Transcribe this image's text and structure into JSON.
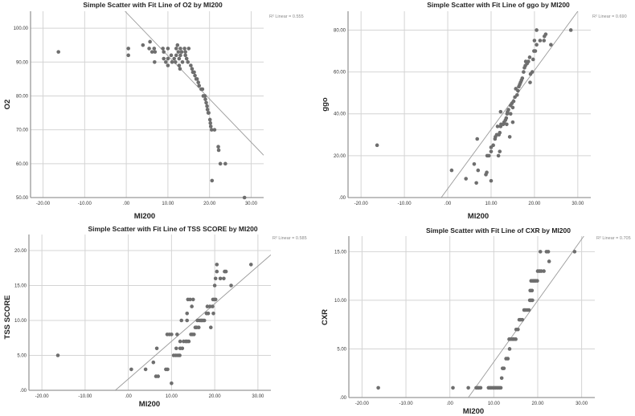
{
  "chart_data": [
    {
      "type": "scatter",
      "title": "Simple Scatter with Fit Line of O2 by MI200",
      "xlabel": "MI200",
      "ylabel": "O2",
      "r2_label": "R² Linear = 0.555",
      "xlim": [
        -23,
        33
      ],
      "ylim": [
        50,
        105
      ],
      "xticks": [
        -20,
        -10,
        0,
        10,
        20,
        30
      ],
      "xtick_labels": [
        "-20.00",
        "-10.00",
        ".00",
        "10.00",
        "20.00",
        "30.00"
      ],
      "yticks": [
        50,
        60,
        70,
        80,
        90,
        100
      ],
      "ytick_labels": [
        "50.00",
        "60.00",
        "70.00",
        "80.00",
        "90.00",
        "100.00"
      ],
      "grid": true,
      "fit_line": {
        "x1": -0.3,
        "y1": 105,
        "x2": 33,
        "y2": 62.5
      },
      "points": [
        [
          -16.3,
          93
        ],
        [
          0.5,
          94
        ],
        [
          0.5,
          92
        ],
        [
          4,
          95
        ],
        [
          5.7,
          96
        ],
        [
          5.5,
          94
        ],
        [
          6.2,
          93
        ],
        [
          6.7,
          94
        ],
        [
          6.8,
          90
        ],
        [
          6.9,
          93
        ],
        [
          8.8,
          94
        ],
        [
          9,
          93
        ],
        [
          9,
          91
        ],
        [
          9.5,
          90
        ],
        [
          10,
          94
        ],
        [
          10,
          91
        ],
        [
          10,
          89
        ],
        [
          10.8,
          92
        ],
        [
          11,
          90
        ],
        [
          11.5,
          91
        ],
        [
          11.8,
          90
        ],
        [
          12,
          94
        ],
        [
          12,
          92
        ],
        [
          12.3,
          95
        ],
        [
          12.5,
          93
        ],
        [
          12.7,
          91
        ],
        [
          12.7,
          89
        ],
        [
          12.9,
          88
        ],
        [
          13,
          94
        ],
        [
          13,
          92
        ],
        [
          13.3,
          93
        ],
        [
          13.5,
          90
        ],
        [
          14,
          94
        ],
        [
          14.2,
          93
        ],
        [
          14.2,
          92
        ],
        [
          14.5,
          91
        ],
        [
          14.8,
          90
        ],
        [
          15,
          94
        ],
        [
          15.5,
          89
        ],
        [
          15.8,
          88
        ],
        [
          16,
          87
        ],
        [
          16.3,
          87
        ],
        [
          16.5,
          86
        ],
        [
          16.8,
          85
        ],
        [
          17,
          85
        ],
        [
          17.3,
          84
        ],
        [
          17.5,
          83
        ],
        [
          18,
          82
        ],
        [
          18.3,
          82
        ],
        [
          18.5,
          80
        ],
        [
          18.9,
          80
        ],
        [
          19,
          79
        ],
        [
          19.2,
          78
        ],
        [
          19.4,
          77
        ],
        [
          19.5,
          76
        ],
        [
          19.7,
          75
        ],
        [
          19.8,
          75
        ],
        [
          20.1,
          73
        ],
        [
          20.2,
          72
        ],
        [
          20.3,
          71
        ],
        [
          20.5,
          70
        ],
        [
          21.2,
          70
        ],
        [
          22.1,
          65
        ],
        [
          22.2,
          64
        ],
        [
          22.6,
          60
        ],
        [
          23.8,
          60
        ],
        [
          20.6,
          55
        ],
        [
          28.4,
          50
        ]
      ]
    },
    {
      "type": "scatter",
      "title": "Simple Scatter with Fit Line of ggo by MI200",
      "xlabel": "MI200",
      "ylabel": "ggo",
      "r2_label": "R² Linear = 0.690",
      "xlim": [
        -23,
        33
      ],
      "ylim": [
        0,
        89
      ],
      "xticks": [
        -20,
        -10,
        0,
        10,
        20,
        30
      ],
      "xtick_labels": [
        "-20.00",
        "-10.00",
        ".00",
        "10.00",
        "20.00",
        "30.00"
      ],
      "yticks": [
        0,
        20,
        40,
        60,
        80
      ],
      "ytick_labels": [
        ".00",
        "20.00",
        "40.00",
        "60.00",
        "80.00"
      ],
      "grid": true,
      "fit_line": {
        "x1": -1.5,
        "y1": 0,
        "x2": 30,
        "y2": 89
      },
      "points": [
        [
          -16.3,
          25
        ],
        [
          0.9,
          13
        ],
        [
          4.2,
          9
        ],
        [
          6.1,
          16
        ],
        [
          6.6,
          7
        ],
        [
          6.8,
          28
        ],
        [
          7,
          13
        ],
        [
          8.8,
          11
        ],
        [
          9,
          12
        ],
        [
          9.1,
          20
        ],
        [
          9.5,
          20
        ],
        [
          10,
          8
        ],
        [
          10,
          22
        ],
        [
          10,
          24
        ],
        [
          10.5,
          25
        ],
        [
          10.9,
          28
        ],
        [
          11,
          29
        ],
        [
          11.3,
          30
        ],
        [
          11.5,
          34
        ],
        [
          11.7,
          20
        ],
        [
          11.8,
          30
        ],
        [
          12,
          31
        ],
        [
          12,
          22
        ],
        [
          12.2,
          41
        ],
        [
          12.2,
          34
        ],
        [
          12.3,
          35
        ],
        [
          12.8,
          35
        ],
        [
          13,
          36
        ],
        [
          13.3,
          37
        ],
        [
          13.5,
          38
        ],
        [
          13.6,
          35
        ],
        [
          13.7,
          40
        ],
        [
          13.8,
          41
        ],
        [
          14,
          42
        ],
        [
          14.3,
          29
        ],
        [
          14.5,
          40
        ],
        [
          14.5,
          44
        ],
        [
          14.8,
          45
        ],
        [
          15,
          36
        ],
        [
          15,
          43
        ],
        [
          15.2,
          46
        ],
        [
          15.5,
          48
        ],
        [
          15.7,
          52
        ],
        [
          16,
          49
        ],
        [
          16.2,
          51
        ],
        [
          16.4,
          53
        ],
        [
          16.6,
          54
        ],
        [
          16.8,
          55
        ],
        [
          17,
          56
        ],
        [
          17.2,
          57
        ],
        [
          17.5,
          60
        ],
        [
          17.7,
          62
        ],
        [
          17.9,
          63
        ],
        [
          18,
          65
        ],
        [
          18.3,
          64
        ],
        [
          18.6,
          65
        ],
        [
          18.9,
          67
        ],
        [
          19,
          55
        ],
        [
          19.1,
          59
        ],
        [
          19.5,
          60
        ],
        [
          19.7,
          66
        ],
        [
          19.9,
          70
        ],
        [
          20,
          75
        ],
        [
          20.2,
          70
        ],
        [
          20.5,
          73
        ],
        [
          20.5,
          80
        ],
        [
          21.3,
          75
        ],
        [
          22.2,
          75
        ],
        [
          22.3,
          77
        ],
        [
          22.6,
          78
        ],
        [
          23.8,
          73
        ],
        [
          28.4,
          80
        ]
      ]
    },
    {
      "type": "scatter",
      "title": "Simple Scatter with Fit Line of TSS SCORE by MI200",
      "xlabel": "MI200",
      "ylabel": "TSS SCORE",
      "r2_label": "R² Linear = 0.585",
      "xlim": [
        -23,
        33
      ],
      "ylim": [
        0,
        22.3
      ],
      "xticks": [
        -20,
        -10,
        0,
        10,
        20,
        30
      ],
      "xtick_labels": [
        "-20.00",
        "-10.00",
        ".00",
        "10.00",
        "20.00",
        "30.00"
      ],
      "yticks": [
        0,
        5,
        10,
        15,
        20
      ],
      "ytick_labels": [
        ".00",
        "5.00",
        "10.00",
        "15.00",
        "20.00"
      ],
      "grid": true,
      "fit_line": {
        "x1": -3,
        "y1": 0,
        "x2": 33,
        "y2": 19.4
      },
      "points": [
        [
          -16.3,
          5
        ],
        [
          0.7,
          3
        ],
        [
          4,
          3
        ],
        [
          5.8,
          4
        ],
        [
          6.4,
          2
        ],
        [
          6.6,
          6
        ],
        [
          6.9,
          2
        ],
        [
          8.7,
          3
        ],
        [
          9,
          8
        ],
        [
          9.1,
          3
        ],
        [
          9.5,
          8
        ],
        [
          10,
          1
        ],
        [
          10,
          8
        ],
        [
          10.5,
          5
        ],
        [
          11,
          5
        ],
        [
          11.1,
          6
        ],
        [
          11.3,
          8
        ],
        [
          11.5,
          5
        ],
        [
          11.9,
          5
        ],
        [
          12,
          7
        ],
        [
          12,
          6
        ],
        [
          12.3,
          10
        ],
        [
          12.5,
          6
        ],
        [
          12.8,
          7
        ],
        [
          13.3,
          7
        ],
        [
          13.6,
          7
        ],
        [
          13.6,
          10
        ],
        [
          13.6,
          11
        ],
        [
          13.8,
          13
        ],
        [
          14,
          7
        ],
        [
          14.3,
          13
        ],
        [
          14.5,
          8
        ],
        [
          14.7,
          12
        ],
        [
          14.8,
          8
        ],
        [
          15,
          13
        ],
        [
          15.2,
          8
        ],
        [
          15.5,
          9
        ],
        [
          15.8,
          9
        ],
        [
          16,
          10
        ],
        [
          16.3,
          9
        ],
        [
          16.5,
          10
        ],
        [
          16.8,
          10
        ],
        [
          17,
          10
        ],
        [
          17.3,
          10
        ],
        [
          17.6,
          10
        ],
        [
          18.1,
          11
        ],
        [
          18.3,
          12
        ],
        [
          18.5,
          11
        ],
        [
          18.9,
          12
        ],
        [
          19.1,
          9
        ],
        [
          19.5,
          12
        ],
        [
          19.6,
          13
        ],
        [
          19.7,
          11
        ],
        [
          19.9,
          13
        ],
        [
          20,
          15
        ],
        [
          20.2,
          16
        ],
        [
          20.2,
          13
        ],
        [
          20.5,
          17
        ],
        [
          20.5,
          18
        ],
        [
          21.3,
          16
        ],
        [
          22.1,
          16
        ],
        [
          22.3,
          17
        ],
        [
          22.6,
          17
        ],
        [
          23.8,
          15
        ],
        [
          28.4,
          18
        ]
      ]
    },
    {
      "type": "scatter",
      "title": "Simple Scatter with Fit Line of CXR by MI200",
      "xlabel": "MI200",
      "ylabel": "CXR",
      "r2_label": "R² Linear = 0.705",
      "xlim": [
        -23,
        33
      ],
      "ylim": [
        0,
        16.6
      ],
      "xticks": [
        -20,
        -10,
        0,
        10,
        20,
        30
      ],
      "xtick_labels": [
        "-20.00",
        "-10.00",
        ".00",
        "10.00",
        "20.00",
        "30.00"
      ],
      "yticks": [
        0,
        5,
        10,
        15
      ],
      "ytick_labels": [
        ".00",
        "5.00",
        "10.00",
        "15.00"
      ],
      "grid": true,
      "fit_line": {
        "x1": 4.2,
        "y1": 0,
        "x2": 30.5,
        "y2": 16.6
      },
      "points": [
        [
          -16.3,
          1
        ],
        [
          0.7,
          1
        ],
        [
          4.2,
          1
        ],
        [
          6,
          1
        ],
        [
          6.3,
          1
        ],
        [
          6.6,
          1
        ],
        [
          7,
          1
        ],
        [
          8.8,
          1
        ],
        [
          9.1,
          1
        ],
        [
          9.4,
          1
        ],
        [
          9.8,
          1
        ],
        [
          10.1,
          1
        ],
        [
          10.4,
          1
        ],
        [
          10.7,
          1
        ],
        [
          11,
          1
        ],
        [
          11.3,
          1
        ],
        [
          11.6,
          1
        ],
        [
          11.8,
          2
        ],
        [
          12,
          3
        ],
        [
          12.3,
          3
        ],
        [
          12.8,
          4
        ],
        [
          13.2,
          4
        ],
        [
          13.6,
          5
        ],
        [
          13.5,
          6
        ],
        [
          13.9,
          6
        ],
        [
          14.3,
          6
        ],
        [
          14.6,
          6
        ],
        [
          15,
          6
        ],
        [
          15.1,
          7
        ],
        [
          15.5,
          7
        ],
        [
          15.8,
          8
        ],
        [
          16.1,
          8
        ],
        [
          16.5,
          8
        ],
        [
          16.9,
          9
        ],
        [
          17.2,
          9
        ],
        [
          17.6,
          9
        ],
        [
          18,
          9
        ],
        [
          18.2,
          10
        ],
        [
          18.5,
          10
        ],
        [
          18.8,
          10
        ],
        [
          18.3,
          11
        ],
        [
          18.7,
          11
        ],
        [
          18.5,
          12
        ],
        [
          18.9,
          12
        ],
        [
          19.2,
          12
        ],
        [
          19.5,
          12
        ],
        [
          19.9,
          12
        ],
        [
          20,
          13
        ],
        [
          20.4,
          13
        ],
        [
          20.8,
          13
        ],
        [
          21.4,
          13
        ],
        [
          20.6,
          15
        ],
        [
          22,
          15
        ],
        [
          22.4,
          15
        ],
        [
          22.6,
          14
        ],
        [
          28.4,
          15
        ]
      ]
    }
  ]
}
